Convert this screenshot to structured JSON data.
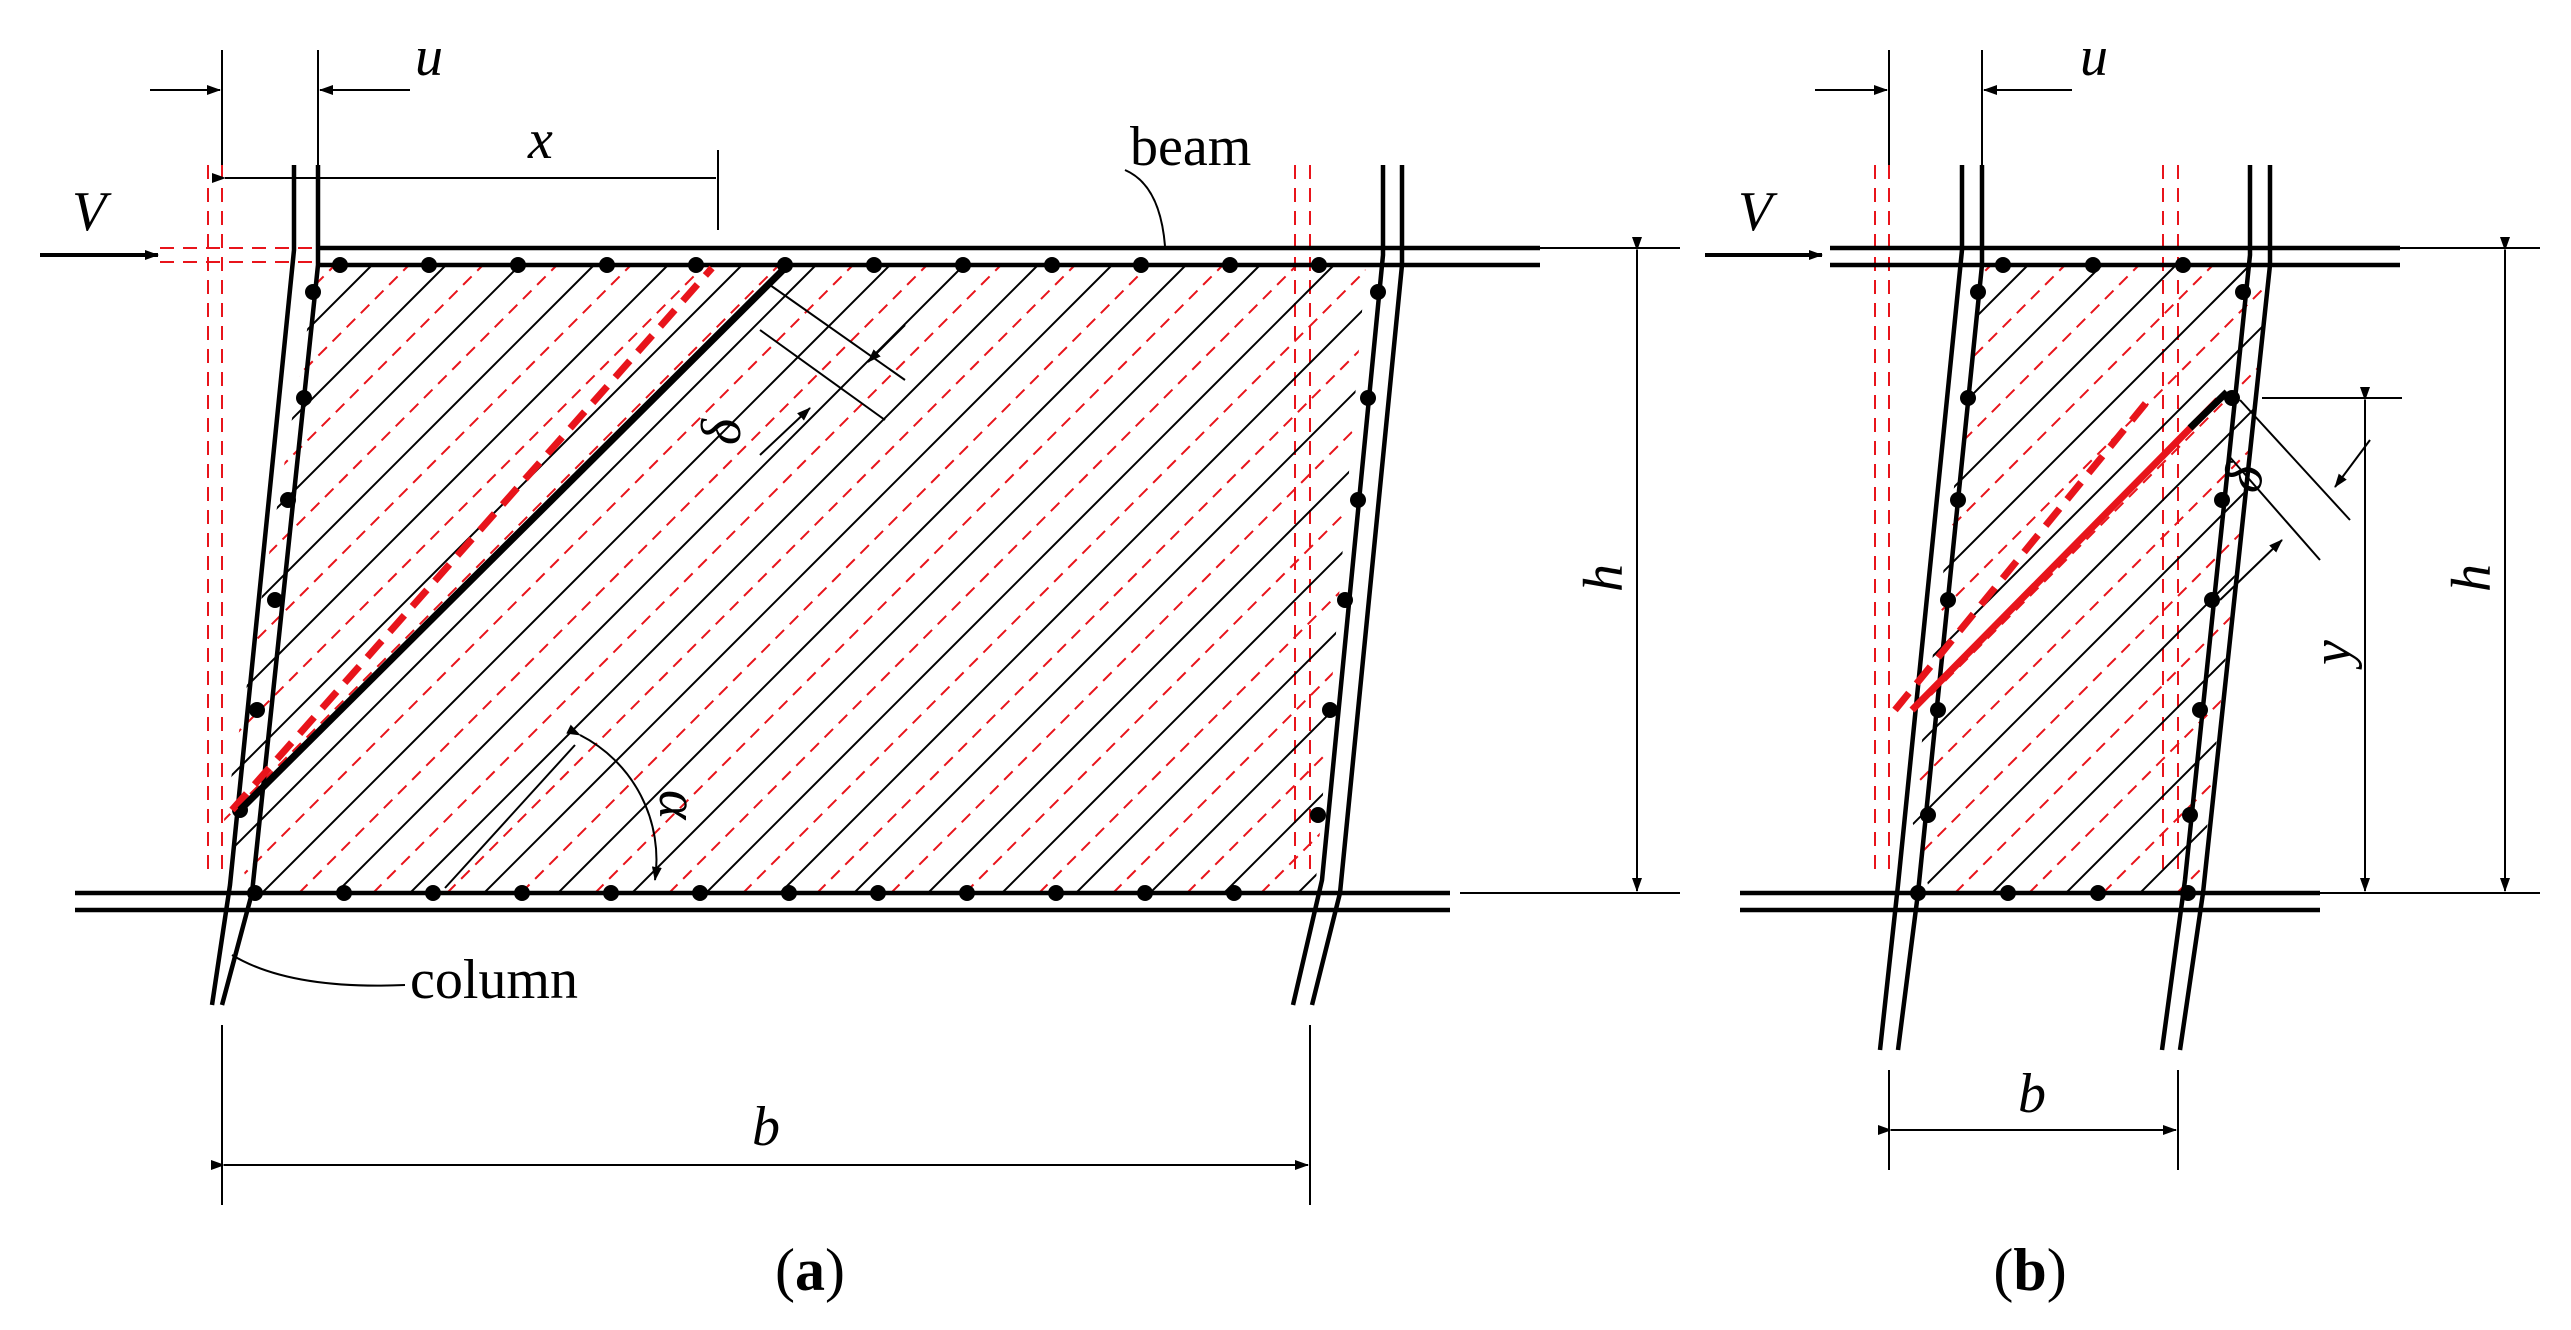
{
  "panel_a": {
    "caption_open": "(",
    "caption_letter": "a",
    "caption_close": ")",
    "labels": {
      "u": "u",
      "x": "x",
      "V": "V",
      "beam": "beam",
      "column": "column",
      "h": "h",
      "b": "b",
      "delta": "δ",
      "alpha": "α"
    }
  },
  "panel_b": {
    "caption_open": "(",
    "caption_letter": "b",
    "caption_close": ")",
    "labels": {
      "u": "u",
      "V": "V",
      "h": "h",
      "b": "b",
      "y": "y",
      "delta": "δ"
    }
  },
  "colors": {
    "ink": "#000000",
    "tension_field": "#e8141b"
  }
}
